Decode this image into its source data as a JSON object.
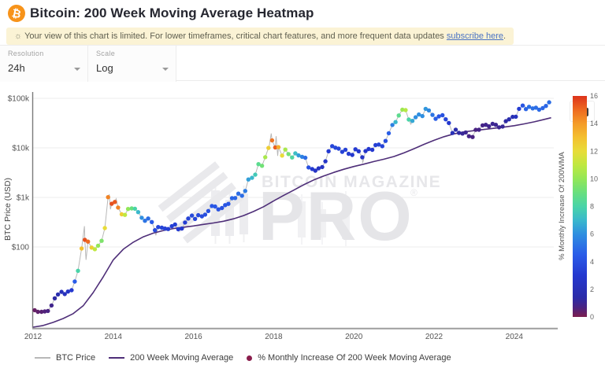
{
  "header": {
    "title": "Bitcoin: 200 Week Moving Average Heatmap",
    "logo_glyph": "₿"
  },
  "notice": {
    "icon_glyph": "☼",
    "text": "Your view of this chart is limited. For lower timeframes, critical chart features, and more frequent data updates ",
    "link_text": "subscribe here",
    "suffix": "."
  },
  "toolbar": {
    "resolution_label": "Resolution",
    "resolution_value": "24h",
    "scale_label": "Scale",
    "scale_value": "Log"
  },
  "watermark": {
    "line1": "BITCOIN MAGAZINE",
    "line2": "PRO",
    "reg": "®"
  },
  "legend": {
    "items": [
      {
        "label": "BTC Price",
        "swatch": "line",
        "color": "#b8b8b8"
      },
      {
        "label": "200 Week Moving Average",
        "swatch": "line",
        "color": "#4e2e78"
      },
      {
        "label": "% Monthly Increase Of 200 Week Moving Average",
        "swatch": "dot",
        "color": "#8a1d4c"
      }
    ]
  },
  "colors": {
    "accent_orange": "#f7931a",
    "notice_bg": "#fbf3d5",
    "link_blue": "#4a73c4",
    "grid": "#ededed",
    "axis": "#8c8c8c",
    "tick_text": "#555555",
    "watermark": "#e7e7ea",
    "price_line": "#b8b8b8",
    "wma_line": "#4e2e78"
  },
  "chart_data": {
    "type": "scatter",
    "title": "Bitcoin: 200 Week Moving Average Heatmap",
    "xlabel": "",
    "ylabel": "BTC Price (USD)",
    "y_scale": "log",
    "grid": "horizontal-only",
    "legend_position": "bottom-left",
    "x_ticks": [
      2012,
      2014,
      2016,
      2018,
      2020,
      2022,
      2024
    ],
    "x_range": [
      2012,
      2025.1
    ],
    "y_ticks": [
      {
        "label": "$100k",
        "usd": 100000
      },
      {
        "label": "$10k",
        "usd": 10000
      },
      {
        "label": "$1k",
        "usd": 1000
      },
      {
        "label": "$100",
        "usd": 100
      }
    ],
    "y_range_usd": [
      2.3,
      135000
    ],
    "colorbar": {
      "label": "% Monthly Increase Of 200WMA",
      "min": 0,
      "max": 16,
      "ticks": [
        0,
        2,
        4,
        6,
        8,
        10,
        12,
        14,
        16
      ],
      "stops": [
        [
          0,
          "#7c1e4e"
        ],
        [
          0.7,
          "#4a2382"
        ],
        [
          1.4,
          "#2b2ba8"
        ],
        [
          3,
          "#2438cf"
        ],
        [
          4.5,
          "#2a5ce8"
        ],
        [
          6,
          "#2f8fe0"
        ],
        [
          7,
          "#3ab8cc"
        ],
        [
          8,
          "#49d4a8"
        ],
        [
          9,
          "#68df7e"
        ],
        [
          10,
          "#93e757"
        ],
        [
          11,
          "#bfe840"
        ],
        [
          12,
          "#e8dc39"
        ],
        [
          13,
          "#f4c02f"
        ],
        [
          14,
          "#f49b28"
        ],
        [
          15,
          "#ee6a20"
        ],
        [
          16,
          "#dd331b"
        ]
      ]
    },
    "series": [
      {
        "name": "BTC Price",
        "type": "line",
        "color": "#b8b8b8",
        "note": "thin grey daily price trace through the heat points"
      },
      {
        "name": "200 Week Moving Average",
        "type": "line",
        "color": "#4e2e78",
        "points": [
          [
            2012.0,
            2.4
          ],
          [
            2012.25,
            2.6
          ],
          [
            2012.5,
            3.0
          ],
          [
            2012.75,
            3.6
          ],
          [
            2013.0,
            4.5
          ],
          [
            2013.25,
            6.5
          ],
          [
            2013.5,
            12
          ],
          [
            2013.75,
            25
          ],
          [
            2014.0,
            55
          ],
          [
            2014.25,
            90
          ],
          [
            2014.5,
            125
          ],
          [
            2014.75,
            160
          ],
          [
            2015.0,
            190
          ],
          [
            2015.25,
            215
          ],
          [
            2015.5,
            235
          ],
          [
            2015.75,
            250
          ],
          [
            2016.0,
            265
          ],
          [
            2016.25,
            285
          ],
          [
            2016.5,
            305
          ],
          [
            2016.75,
            330
          ],
          [
            2017.0,
            370
          ],
          [
            2017.25,
            430
          ],
          [
            2017.5,
            520
          ],
          [
            2017.75,
            650
          ],
          [
            2018.0,
            850
          ],
          [
            2018.25,
            1100
          ],
          [
            2018.5,
            1400
          ],
          [
            2018.75,
            1800
          ],
          [
            2019.0,
            2250
          ],
          [
            2019.25,
            2700
          ],
          [
            2019.5,
            3200
          ],
          [
            2019.75,
            3700
          ],
          [
            2020.0,
            4200
          ],
          [
            2020.25,
            4700
          ],
          [
            2020.5,
            5300
          ],
          [
            2020.75,
            5900
          ],
          [
            2021.0,
            6700
          ],
          [
            2021.25,
            7900
          ],
          [
            2021.5,
            9600
          ],
          [
            2021.75,
            11800
          ],
          [
            2022.0,
            14200
          ],
          [
            2022.25,
            16800
          ],
          [
            2022.5,
            19200
          ],
          [
            2022.75,
            21000
          ],
          [
            2023.0,
            22300
          ],
          [
            2023.25,
            23500
          ],
          [
            2023.5,
            24800
          ],
          [
            2023.75,
            26200
          ],
          [
            2024.0,
            28000
          ],
          [
            2024.25,
            30500
          ],
          [
            2024.5,
            33500
          ],
          [
            2024.75,
            37500
          ],
          [
            2024.92,
            40500
          ]
        ]
      },
      {
        "name": "% Monthly Increase Of 200 Week Moving Average",
        "type": "scatter-heatmap",
        "format": "[year, price_usd, pct_monthly_increase_200wma]",
        "points": [
          [
            2012.04,
            5.3,
            0.3
          ],
          [
            2012.12,
            4.9,
            0.4
          ],
          [
            2012.21,
            4.9,
            0.5
          ],
          [
            2012.29,
            5.0,
            0.6
          ],
          [
            2012.37,
            5.1,
            0.7
          ],
          [
            2012.46,
            6.6,
            0.9
          ],
          [
            2012.54,
            9.2,
            1.3
          ],
          [
            2012.62,
            11.0,
            1.7
          ],
          [
            2012.71,
            12.4,
            2.1
          ],
          [
            2012.79,
            11.2,
            2.2
          ],
          [
            2012.87,
            12.6,
            2.6
          ],
          [
            2012.96,
            13.4,
            3.0
          ],
          [
            2013.04,
            20,
            4.5
          ],
          [
            2013.12,
            33,
            8.0
          ],
          [
            2013.21,
            93,
            13.0
          ],
          [
            2013.29,
            139,
            15.5
          ],
          [
            2013.37,
            128,
            15.0
          ],
          [
            2013.46,
            97,
            12.5
          ],
          [
            2013.54,
            90,
            11.0
          ],
          [
            2013.62,
            106,
            10.0
          ],
          [
            2013.71,
            133,
            9.5
          ],
          [
            2013.79,
            240,
            12.0
          ],
          [
            2013.87,
            1010,
            14.5
          ],
          [
            2013.96,
            745,
            15.5
          ],
          [
            2014.04,
            810,
            15.3
          ],
          [
            2014.12,
            625,
            14.5
          ],
          [
            2014.21,
            455,
            12.5
          ],
          [
            2014.29,
            445,
            11.0
          ],
          [
            2014.37,
            585,
            10.0
          ],
          [
            2014.46,
            600,
            9.0
          ],
          [
            2014.54,
            590,
            8.0
          ],
          [
            2014.62,
            505,
            7.0
          ],
          [
            2014.71,
            388,
            6.0
          ],
          [
            2014.79,
            338,
            5.2
          ],
          [
            2014.87,
            375,
            5.0
          ],
          [
            2014.96,
            318,
            4.5
          ],
          [
            2015.04,
            218,
            3.8
          ],
          [
            2015.12,
            252,
            3.6
          ],
          [
            2015.21,
            245,
            3.5
          ],
          [
            2015.29,
            235,
            3.4
          ],
          [
            2015.37,
            230,
            3.3
          ],
          [
            2015.46,
            262,
            3.3
          ],
          [
            2015.54,
            284,
            3.3
          ],
          [
            2015.62,
            228,
            3.1
          ],
          [
            2015.71,
            235,
            3.0
          ],
          [
            2015.79,
            312,
            3.2
          ],
          [
            2015.87,
            376,
            3.5
          ],
          [
            2015.96,
            430,
            3.8
          ],
          [
            2016.04,
            368,
            3.6
          ],
          [
            2016.12,
            437,
            3.8
          ],
          [
            2016.21,
            415,
            3.8
          ],
          [
            2016.29,
            449,
            3.9
          ],
          [
            2016.37,
            531,
            4.0
          ],
          [
            2016.46,
            672,
            4.3
          ],
          [
            2016.54,
            655,
            4.3
          ],
          [
            2016.62,
            573,
            4.1
          ],
          [
            2016.71,
            610,
            4.1
          ],
          [
            2016.79,
            700,
            4.2
          ],
          [
            2016.87,
            742,
            4.3
          ],
          [
            2016.96,
            963,
            4.8
          ],
          [
            2017.04,
            970,
            4.8
          ],
          [
            2017.12,
            1190,
            5.0
          ],
          [
            2017.21,
            1080,
            5.0
          ],
          [
            2017.29,
            1350,
            5.4
          ],
          [
            2017.37,
            2300,
            6.4
          ],
          [
            2017.46,
            2480,
            7.0
          ],
          [
            2017.54,
            2880,
            7.6
          ],
          [
            2017.62,
            4700,
            8.6
          ],
          [
            2017.71,
            4340,
            9.2
          ],
          [
            2017.79,
            6470,
            10.5
          ],
          [
            2017.87,
            9950,
            12.5
          ],
          [
            2017.96,
            14150,
            14.8
          ],
          [
            2018.04,
            10200,
            15.2
          ],
          [
            2018.12,
            10350,
            13.5
          ],
          [
            2018.21,
            7000,
            12.0
          ],
          [
            2018.29,
            9240,
            10.5
          ],
          [
            2018.37,
            7500,
            9.3
          ],
          [
            2018.46,
            6400,
            8.2
          ],
          [
            2018.54,
            7750,
            7.2
          ],
          [
            2018.62,
            7030,
            6.3
          ],
          [
            2018.71,
            6600,
            5.6
          ],
          [
            2018.79,
            6320,
            5.0
          ],
          [
            2018.87,
            4020,
            4.0
          ],
          [
            2018.96,
            3740,
            3.1
          ],
          [
            2019.04,
            3460,
            2.6
          ],
          [
            2019.12,
            3850,
            2.5
          ],
          [
            2019.21,
            4100,
            2.5
          ],
          [
            2019.29,
            5350,
            2.7
          ],
          [
            2019.37,
            8550,
            3.1
          ],
          [
            2019.46,
            10820,
            3.6
          ],
          [
            2019.54,
            10080,
            3.7
          ],
          [
            2019.62,
            9630,
            3.6
          ],
          [
            2019.71,
            8310,
            3.4
          ],
          [
            2019.79,
            9160,
            3.4
          ],
          [
            2019.87,
            7570,
            3.2
          ],
          [
            2019.96,
            7200,
            3.0
          ],
          [
            2020.04,
            9350,
            3.1
          ],
          [
            2020.12,
            8550,
            3.0
          ],
          [
            2020.21,
            6440,
            2.6
          ],
          [
            2020.29,
            8620,
            2.8
          ],
          [
            2020.37,
            9460,
            3.0
          ],
          [
            2020.46,
            9140,
            3.0
          ],
          [
            2020.54,
            11350,
            3.3
          ],
          [
            2020.62,
            11650,
            3.5
          ],
          [
            2020.71,
            10780,
            3.5
          ],
          [
            2020.79,
            13800,
            3.9
          ],
          [
            2020.87,
            19700,
            4.6
          ],
          [
            2020.96,
            29000,
            5.6
          ],
          [
            2021.04,
            33110,
            7.0
          ],
          [
            2021.12,
            45140,
            8.6
          ],
          [
            2021.21,
            58800,
            10.2
          ],
          [
            2021.29,
            57750,
            10.8
          ],
          [
            2021.37,
            37330,
            8.0
          ],
          [
            2021.46,
            35040,
            6.6
          ],
          [
            2021.54,
            41460,
            6.0
          ],
          [
            2021.62,
            47110,
            6.0
          ],
          [
            2021.71,
            43790,
            6.0
          ],
          [
            2021.79,
            61320,
            6.2
          ],
          [
            2021.87,
            57010,
            5.8
          ],
          [
            2021.96,
            46210,
            5.2
          ],
          [
            2022.04,
            38480,
            4.6
          ],
          [
            2022.12,
            43190,
            4.2
          ],
          [
            2022.21,
            45540,
            4.1
          ],
          [
            2022.29,
            37640,
            3.6
          ],
          [
            2022.37,
            31790,
            3.0
          ],
          [
            2022.46,
            19980,
            2.1
          ],
          [
            2022.54,
            23300,
            1.6
          ],
          [
            2022.62,
            20050,
            1.3
          ],
          [
            2022.71,
            19430,
            1.1
          ],
          [
            2022.79,
            20490,
            1.0
          ],
          [
            2022.87,
            17160,
            0.8
          ],
          [
            2022.96,
            16540,
            0.7
          ],
          [
            2023.04,
            23130,
            0.7
          ],
          [
            2023.12,
            23140,
            0.8
          ],
          [
            2023.21,
            28470,
            0.8
          ],
          [
            2023.29,
            29230,
            0.9
          ],
          [
            2023.37,
            27220,
            0.9
          ],
          [
            2023.46,
            30480,
            1.0
          ],
          [
            2023.54,
            29230,
            1.0
          ],
          [
            2023.62,
            25940,
            1.0
          ],
          [
            2023.71,
            26960,
            1.1
          ],
          [
            2023.79,
            34500,
            1.3
          ],
          [
            2023.87,
            37710,
            1.6
          ],
          [
            2023.96,
            42280,
            1.9
          ],
          [
            2024.04,
            42580,
            2.3
          ],
          [
            2024.12,
            61200,
            3.2
          ],
          [
            2024.21,
            71330,
            4.2
          ],
          [
            2024.29,
            60640,
            4.8
          ],
          [
            2024.37,
            67500,
            5.1
          ],
          [
            2024.46,
            62680,
            5.1
          ],
          [
            2024.54,
            64620,
            5.0
          ],
          [
            2024.62,
            58970,
            4.9
          ],
          [
            2024.71,
            63330,
            4.8
          ],
          [
            2024.79,
            70220,
            4.8
          ],
          [
            2024.87,
            83000,
            5.0
          ]
        ]
      }
    ],
    "price_spikes": [
      [
        2013.28,
        262
      ],
      [
        2013.32,
        55
      ],
      [
        2013.9,
        1150
      ],
      [
        2013.93,
        576
      ],
      [
        2014.07,
        935
      ],
      [
        2015.06,
        172
      ],
      [
        2017.89,
        11000
      ],
      [
        2017.94,
        19500
      ],
      [
        2018.06,
        17200
      ],
      [
        2018.1,
        6900
      ],
      [
        2020.22,
        4950
      ],
      [
        2021.42,
        30000
      ],
      [
        2024.25,
        73700
      ]
    ]
  }
}
